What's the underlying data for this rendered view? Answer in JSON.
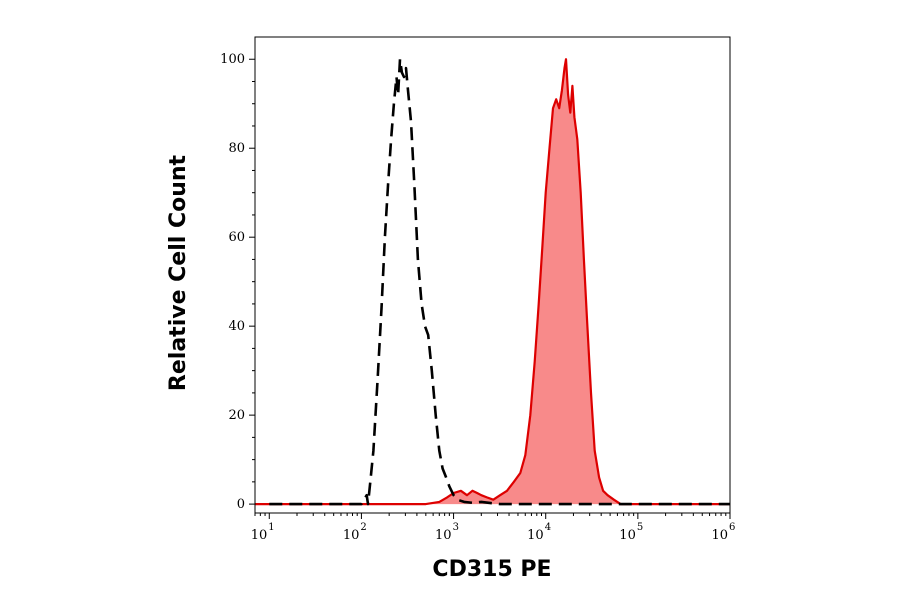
{
  "chart_data": {
    "type": "area",
    "xlabel": "CD315 PE",
    "ylabel": "Relative Cell Count",
    "xscale": "log",
    "xlim": [
      7,
      1000000
    ],
    "ylim": [
      -2,
      105
    ],
    "grid": false,
    "legend": "none",
    "x_ticks": [
      {
        "base": "10",
        "exp": "1",
        "value": 10
      },
      {
        "base": "10",
        "exp": "2",
        "value": 100
      },
      {
        "base": "10",
        "exp": "3",
        "value": 1000
      },
      {
        "base": "10",
        "exp": "4",
        "value": 10000
      },
      {
        "base": "10",
        "exp": "5",
        "value": 100000
      },
      {
        "base": "10",
        "exp": "6",
        "value": 1000000
      }
    ],
    "y_ticks": [
      "0",
      "20",
      "40",
      "60",
      "80",
      "100"
    ],
    "series": [
      {
        "style": "dashed",
        "color": "#000000",
        "fill": "none",
        "points": [
          [
            10,
            0
          ],
          [
            100,
            0
          ],
          [
            114,
            2
          ],
          [
            118,
            0
          ],
          [
            125,
            5
          ],
          [
            135,
            12
          ],
          [
            150,
            28
          ],
          [
            165,
            44
          ],
          [
            180,
            60
          ],
          [
            195,
            72
          ],
          [
            210,
            82
          ],
          [
            225,
            90
          ],
          [
            240,
            96
          ],
          [
            250,
            92
          ],
          [
            262,
            100
          ],
          [
            275,
            97
          ],
          [
            290,
            96
          ],
          [
            305,
            98
          ],
          [
            320,
            93
          ],
          [
            345,
            86
          ],
          [
            375,
            72
          ],
          [
            410,
            55
          ],
          [
            450,
            45
          ],
          [
            490,
            40
          ],
          [
            530,
            38
          ],
          [
            580,
            30
          ],
          [
            640,
            20
          ],
          [
            700,
            12
          ],
          [
            760,
            8
          ],
          [
            830,
            6
          ],
          [
            900,
            4
          ],
          [
            1000,
            2
          ],
          [
            1100,
            1
          ],
          [
            1300,
            0.5
          ],
          [
            1600,
            0.3
          ],
          [
            2000,
            0.5
          ],
          [
            2600,
            0.2
          ],
          [
            3200,
            0
          ],
          [
            1000000,
            0
          ]
        ]
      },
      {
        "style": "solid",
        "color": "#dd0000",
        "fill": "#f88a8a",
        "points": [
          [
            7,
            0
          ],
          [
            500,
            0
          ],
          [
            700,
            0.5
          ],
          [
            850,
            1.5
          ],
          [
            1000,
            2.5
          ],
          [
            1200,
            3
          ],
          [
            1400,
            2
          ],
          [
            1600,
            3
          ],
          [
            1800,
            2.5
          ],
          [
            2000,
            2
          ],
          [
            2300,
            1.5
          ],
          [
            2700,
            1
          ],
          [
            3200,
            2
          ],
          [
            3800,
            3
          ],
          [
            4500,
            5
          ],
          [
            5300,
            7
          ],
          [
            6000,
            11
          ],
          [
            6800,
            20
          ],
          [
            7600,
            32
          ],
          [
            8400,
            45
          ],
          [
            9200,
            58
          ],
          [
            10000,
            70
          ],
          [
            11000,
            80
          ],
          [
            12000,
            89
          ],
          [
            13000,
            91
          ],
          [
            14000,
            89
          ],
          [
            15000,
            93
          ],
          [
            16000,
            98
          ],
          [
            16600,
            100
          ],
          [
            17500,
            92
          ],
          [
            18500,
            88
          ],
          [
            19500,
            94
          ],
          [
            20500,
            87
          ],
          [
            22000,
            82
          ],
          [
            24000,
            70
          ],
          [
            26000,
            55
          ],
          [
            28000,
            42
          ],
          [
            31000,
            25
          ],
          [
            34000,
            12
          ],
          [
            38000,
            6
          ],
          [
            42000,
            3
          ],
          [
            47000,
            2
          ],
          [
            55000,
            1
          ],
          [
            65000,
            0
          ],
          [
            1000000,
            0
          ]
        ]
      }
    ]
  }
}
